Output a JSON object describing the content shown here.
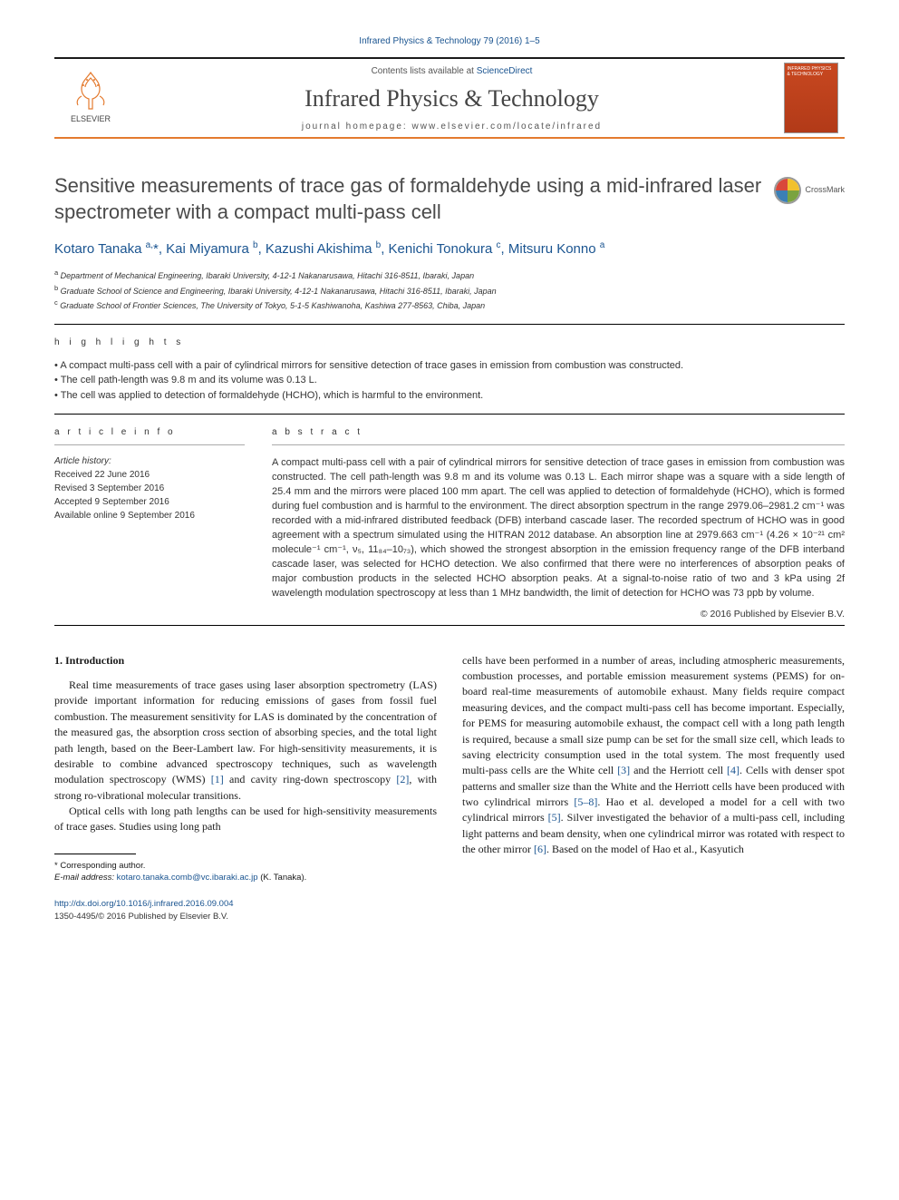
{
  "header": {
    "citation": "Infrared Physics & Technology 79 (2016) 1–5",
    "contents_prefix": "Contents lists available at ",
    "contents_link": "ScienceDirect",
    "journal_name": "Infrared Physics & Technology",
    "homepage_label": "journal homepage: ",
    "homepage_url": "www.elsevier.com/locate/infrared",
    "publisher_name": "ELSEVIER",
    "cover_title": "INFRARED PHYSICS & TECHNOLOGY",
    "crossmark": "CrossMark"
  },
  "article": {
    "title": "Sensitive measurements of trace gas of formaldehyde using a mid-infrared laser spectrometer with a compact multi-pass cell",
    "authors_html": "Kotaro Tanaka <sup>a,</sup>*, Kai Miyamura <sup>b</sup>, Kazushi Akishima <sup>b</sup>, Kenichi Tonokura <sup>c</sup>, Mitsuru Konno <sup>a</sup>",
    "affiliations": [
      {
        "sup": "a",
        "text": "Department of Mechanical Engineering, Ibaraki University, 4-12-1 Nakanarusawa, Hitachi 316-8511, Ibaraki, Japan"
      },
      {
        "sup": "b",
        "text": "Graduate School of Science and Engineering, Ibaraki University, 4-12-1 Nakanarusawa, Hitachi 316-8511, Ibaraki, Japan"
      },
      {
        "sup": "c",
        "text": "Graduate School of Frontier Sciences, The University of Tokyo, 5-1-5 Kashiwanoha, Kashiwa 277-8563, Chiba, Japan"
      }
    ]
  },
  "sections": {
    "highlights_label": "h i g h l i g h t s",
    "article_info_label": "a r t i c l e   i n f o",
    "abstract_label": "a b s t r a c t"
  },
  "highlights": [
    "A compact multi-pass cell with a pair of cylindrical mirrors for sensitive detection of trace gases in emission from combustion was constructed.",
    "The cell path-length was 9.8 m and its volume was 0.13 L.",
    "The cell was applied to detection of formaldehyde (HCHO), which is harmful to the environment."
  ],
  "history": {
    "label": "Article history:",
    "received": "Received 22 June 2016",
    "revised": "Revised 3 September 2016",
    "accepted": "Accepted 9 September 2016",
    "online": "Available online 9 September 2016"
  },
  "abstract": "A compact multi-pass cell with a pair of cylindrical mirrors for sensitive detection of trace gases in emission from combustion was constructed. The cell path-length was 9.8 m and its volume was 0.13 L. Each mirror shape was a square with a side length of 25.4 mm and the mirrors were placed 100 mm apart. The cell was applied to detection of formaldehyde (HCHO), which is formed during fuel combustion and is harmful to the environment. The direct absorption spectrum in the range 2979.06–2981.2 cm⁻¹ was recorded with a mid-infrared distributed feedback (DFB) interband cascade laser. The recorded spectrum of HCHO was in good agreement with a spectrum simulated using the HITRAN 2012 database. An absorption line at 2979.663 cm⁻¹ (4.26 × 10⁻²¹ cm² molecule⁻¹ cm⁻¹, ν₅, 11₈₄–10₇₃), which showed the strongest absorption in the emission frequency range of the DFB interband cascade laser, was selected for HCHO detection. We also confirmed that there were no interferences of absorption peaks of major combustion products in the selected HCHO absorption peaks. At a signal-to-noise ratio of two and 3 kPa using 2f wavelength modulation spectroscopy at less than 1 MHz bandwidth, the limit of detection for HCHO was 73 ppb by volume.",
  "copyright": "© 2016 Published by Elsevier B.V.",
  "body": {
    "heading": "1. Introduction",
    "col1_p1": "Real time measurements of trace gases using laser absorption spectrometry (LAS) provide important information for reducing emissions of gases from fossil fuel combustion. The measurement sensitivity for LAS is dominated by the concentration of the measured gas, the absorption cross section of absorbing species, and the total light path length, based on the Beer-Lambert law. For high-sensitivity measurements, it is desirable to combine advanced spectroscopy techniques, such as wavelength modulation spectroscopy (WMS) [1] and cavity ring-down spectroscopy [2], with strong ro-vibrational molecular transitions.",
    "col1_p2": "Optical cells with long path lengths can be used for high-sensitivity measurements of trace gases. Studies using long path",
    "col2_p1": "cells have been performed in a number of areas, including atmospheric measurements, combustion processes, and portable emission measurement systems (PEMS) for on-board real-time measurements of automobile exhaust. Many fields require compact measuring devices, and the compact multi-pass cell has become important. Especially, for PEMS for measuring automobile exhaust, the compact cell with a long path length is required, because a small size pump can be set for the small size cell, which leads to saving electricity consumption used in the total system. The most frequently used multi-pass cells are the White cell [3] and the Herriott cell [4]. Cells with denser spot patterns and smaller size than the White and the Herriott cells have been produced with two cylindrical mirrors [5–8]. Hao et al. developed a model for a cell with two cylindrical mirrors [5]. Silver investigated the behavior of a multi-pass cell, including light patterns and beam density, when one cylindrical mirror was rotated with respect to the other mirror [6]. Based on the model of Hao et al., Kasyutich"
  },
  "footer": {
    "corresponding_label": "* Corresponding author.",
    "email_label": "E-mail address: ",
    "email": "kotaro.tanaka.comb@vc.ibaraki.ac.jp",
    "email_name": " (K. Tanaka).",
    "doi": "http://dx.doi.org/10.1016/j.infrared.2016.09.004",
    "issn_line": "1350-4495/© 2016 Published by Elsevier B.V."
  },
  "colors": {
    "link": "#1a5490",
    "accent": "#e47a2e",
    "crossmark": [
      "#d9483b",
      "#f2c12e",
      "#3b7fb5",
      "#7aa33f"
    ]
  }
}
